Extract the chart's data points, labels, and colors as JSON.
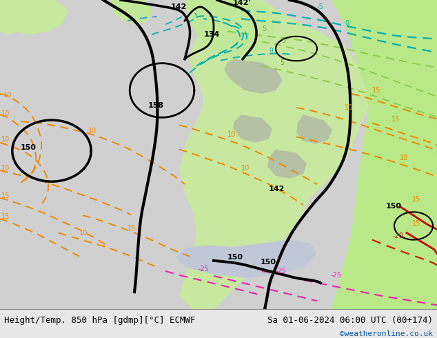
{
  "title_left": "Height/Temp. 850 hPa [gdmp][°C] ECMWF",
  "title_right": "Sa 01-06-2024 06:00 UTC (00+174)",
  "credit": "©weatheronline.co.uk",
  "figsize": [
    6.34,
    4.9
  ],
  "dpi": 100,
  "bottom_bar_color": "#e8e8e8",
  "bottom_text_color": "#000000",
  "credit_color": "#0055aa",
  "title_fontsize": 9.0,
  "credit_fontsize": 8.0,
  "map_gray": "#d8d8d8",
  "map_green": "#c8e8a0",
  "map_green2": "#b8e090"
}
